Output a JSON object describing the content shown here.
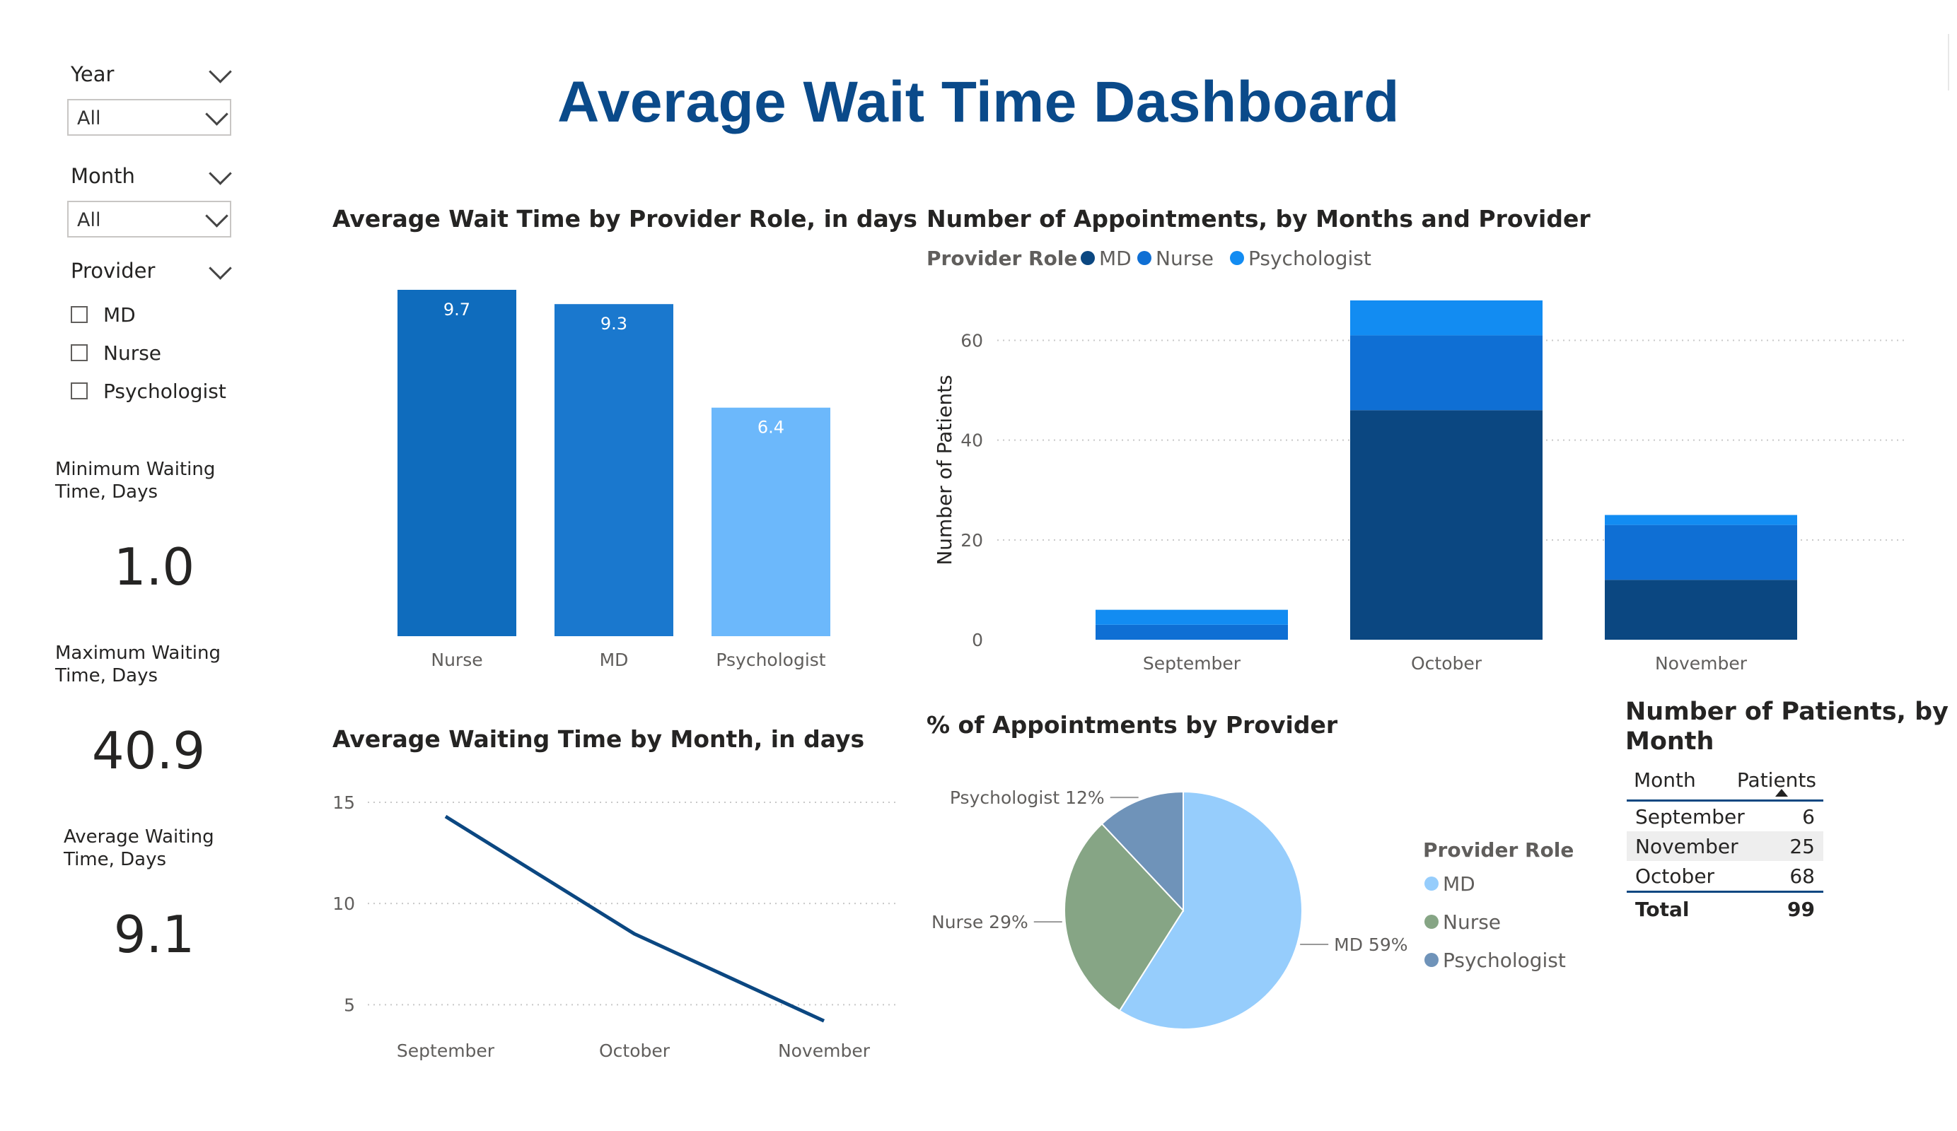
{
  "title": "Average Wait Time Dashboard",
  "filters": {
    "year": {
      "label": "Year",
      "value": "All"
    },
    "month": {
      "label": "Month",
      "value": "All"
    },
    "provider": {
      "label": "Provider",
      "options": [
        "MD",
        "Nurse",
        "Psychologist"
      ]
    }
  },
  "kpis": [
    {
      "label_lines": [
        "Minimum Waiting",
        "Time, Days"
      ],
      "value": "1.0"
    },
    {
      "label_lines": [
        "Maximum Waiting",
        "Time, Days"
      ],
      "value": "40.9"
    },
    {
      "label_lines": [
        "Average Waiting",
        "Time, Days"
      ],
      "value": "9.1"
    }
  ],
  "colors": {
    "md": "#0b4781",
    "nurse": "#0f6fd4",
    "psychologist": "#128cf2",
    "pie_md": "#96cdfc",
    "pie_nurse": "#86a585",
    "pie_psych": "#6f93b9",
    "line": "#0b4781"
  },
  "chart_data": [
    {
      "id": "wait_by_role",
      "type": "bar",
      "title": "Average Wait Time by Provider Role, in days",
      "categories": [
        "Nurse",
        "MD",
        "Psychologist"
      ],
      "values": [
        9.7,
        9.3,
        6.4
      ],
      "data_labels": [
        "9.7",
        "9.3",
        "6.4"
      ],
      "bar_colors": [
        "#0f6cbd",
        "#1a78ce",
        "#6cb8fb"
      ],
      "ylim": [
        0,
        9.7
      ]
    },
    {
      "id": "appointments_by_month",
      "type": "bar",
      "stacked": true,
      "title": "Number of Appointments, by Months and Provider",
      "legend_title": "Provider Role",
      "legend_position": "top-left",
      "ylabel": "Number of Patients",
      "categories": [
        "September",
        "October",
        "November"
      ],
      "series": [
        {
          "name": "MD",
          "values": [
            0,
            46,
            12
          ],
          "color": "#0b4781"
        },
        {
          "name": "Nurse",
          "values": [
            3,
            15,
            11
          ],
          "color": "#0f6fd4"
        },
        {
          "name": "Psychologist",
          "values": [
            3,
            7,
            2
          ],
          "color": "#128cf2"
        }
      ],
      "yticks": [
        0,
        20,
        40,
        60
      ],
      "ylim": [
        0,
        68
      ],
      "grid": true
    },
    {
      "id": "wait_by_month",
      "type": "line",
      "title": "Average Waiting Time by Month, in days",
      "categories": [
        "September",
        "October",
        "November"
      ],
      "values": [
        14.3,
        8.5,
        4.2
      ],
      "yticks": [
        5,
        10,
        15
      ],
      "ylim": [
        4,
        15
      ],
      "grid": true
    },
    {
      "id": "pct_by_provider",
      "type": "pie",
      "title": "% of Appointments by Provider",
      "legend_title": "Provider Role",
      "legend_position": "right",
      "slices": [
        {
          "name": "MD",
          "value": 59,
          "label": "MD 59%",
          "color": "#96cdfc"
        },
        {
          "name": "Nurse",
          "value": 29,
          "label": "Nurse 29%",
          "color": "#86a585"
        },
        {
          "name": "Psychologist",
          "value": 12,
          "label": "Psychologist 12%",
          "color": "#6f93b9"
        }
      ]
    },
    {
      "id": "patients_by_month",
      "type": "table",
      "title_lines": [
        "Number of Patients, by",
        "Month"
      ],
      "columns": [
        "Month",
        "Patients"
      ],
      "rows": [
        [
          "September",
          "6"
        ],
        [
          "November",
          "25"
        ],
        [
          "October",
          "68"
        ]
      ],
      "total": [
        "Total",
        "99"
      ]
    }
  ]
}
